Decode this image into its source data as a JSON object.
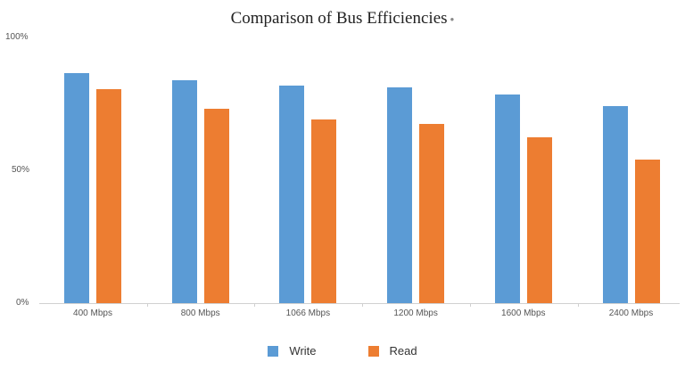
{
  "chart_data": {
    "type": "bar",
    "title": "Comparison of Bus Efficiencies",
    "xlabel": "",
    "ylabel": "",
    "ylim": [
      0,
      100
    ],
    "yticks": [
      "0%",
      "50%",
      "100%"
    ],
    "categories": [
      "400 Mbps",
      "800 Mbps",
      "1066 Mbps",
      "1200 Mbps",
      "1600 Mbps",
      "2400 Mbps"
    ],
    "series": [
      {
        "name": "Write",
        "color": "#5b9bd5",
        "values": [
          86.6,
          83.9,
          81.9,
          81.2,
          78.5,
          74.2
        ]
      },
      {
        "name": "Read",
        "color": "#ed7d31",
        "values": [
          80.5,
          73.2,
          69.1,
          67.4,
          62.4,
          54.0
        ]
      }
    ],
    "grid": false,
    "legend_position": "bottom"
  }
}
